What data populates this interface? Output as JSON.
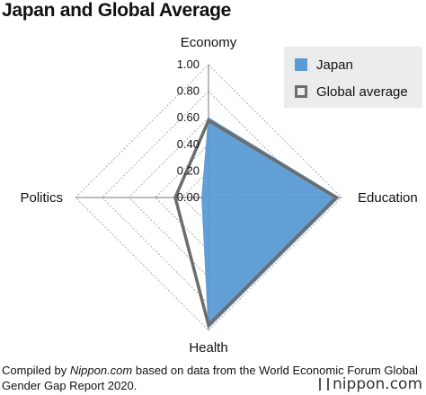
{
  "header": {
    "title": "Japan and Global Average"
  },
  "chart_data": {
    "type": "radar",
    "title": "Japan and Global Average",
    "axes": [
      "Economy",
      "Education",
      "Health",
      "Politics"
    ],
    "ticks": [
      "1.00",
      "0.80",
      "0.60",
      "0.40",
      "0.20",
      "0.00"
    ],
    "range": [
      0,
      1
    ],
    "series": [
      {
        "name": "Japan",
        "values": [
          0.6,
          0.98,
          0.98,
          0.05
        ],
        "color": "#5b9bd5",
        "style": "filled"
      },
      {
        "name": "Global average",
        "values": [
          0.58,
          0.96,
          0.96,
          0.25
        ],
        "color": "#6d6d6d",
        "style": "outline"
      }
    ],
    "grid": true,
    "legend_position": "top-right"
  },
  "caption": {
    "prefix": "Compiled by ",
    "source": "Nippon.com",
    "suffix": " based on data from the World Economic Forum Global Gender Gap Report 2020."
  },
  "brand": {
    "logo_text": "nippon.com"
  }
}
